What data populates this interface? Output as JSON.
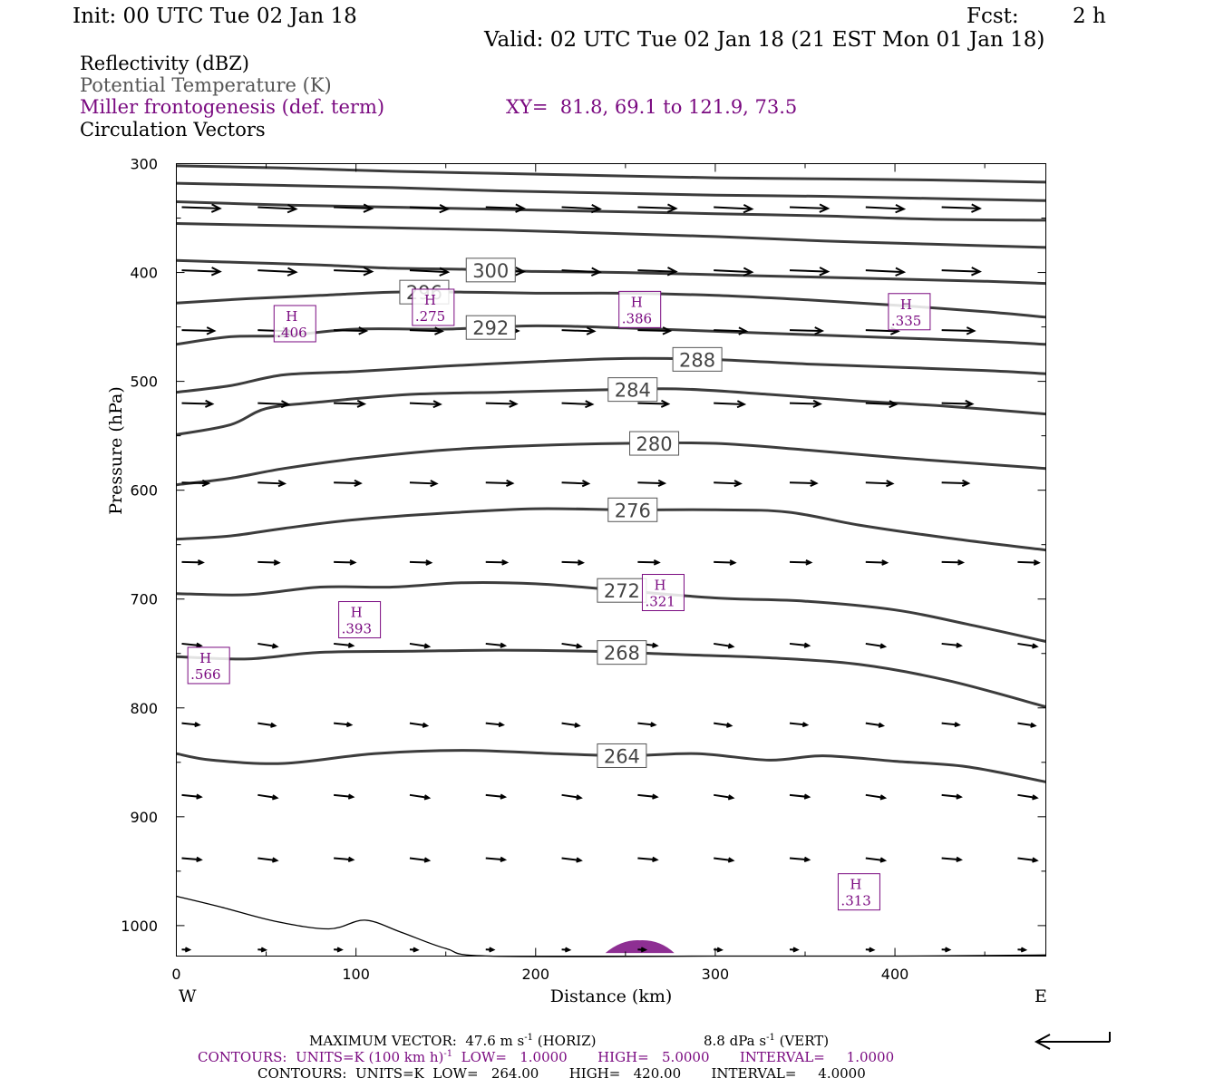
{
  "header": {
    "init": "Init: 00 UTC Tue 02 Jan 18",
    "fcst_label": "Fcst:",
    "fcst_value": "2 h",
    "valid": "Valid: 02 UTC Tue 02 Jan 18 (21 EST Mon 01 Jan 18)"
  },
  "legend": {
    "field1": "Reflectivity (dBZ)",
    "field2": "Potential Temperature (K)",
    "field3": "Miller frontogenesis (def. term)",
    "xy": "XY=  81.8, 69.1 to 121.9, 73.5",
    "field4": "Circulation Vectors"
  },
  "footer": {
    "max_vector_prefix": "MAXIMUM VECTOR:  47.6 m s",
    "max_vector_exp": "-1",
    "max_vector_horiz": " (HORIZ)",
    "max_vector_vert_prefix": "8.8 dPa s",
    "max_vector_vert_exp": "-1",
    "max_vector_vert": " (VERT)",
    "contours_purple_a": "CONTOURS:  UNITS=K (100 km h)",
    "contours_purple_exp": "-1",
    "contours_purple_b": "  LOW=   1.0000       HIGH=   5.0000       INTERVAL=     1.0000",
    "contours_black": "CONTOURS:  UNITS=K  LOW=   264.00       HIGH=   420.00       INTERVAL=     4.0000"
  },
  "colors": {
    "theta": "#3c3c3c",
    "frontogenesis": "#7a0a80",
    "vectors": "#000000",
    "reflectivity": "#7a0a80"
  },
  "chart_data": {
    "type": "line",
    "title": "",
    "xlabel": "Distance (km)",
    "ylabel": "Pressure (hPa)",
    "xlim": [
      0,
      484
    ],
    "ylim": [
      1028,
      300
    ],
    "x_ticks": [
      0,
      100,
      200,
      300,
      400
    ],
    "y_ticks": [
      300,
      400,
      500,
      600,
      700,
      800,
      900,
      1000
    ],
    "x_end_labels": {
      "left": "W",
      "right": "E"
    },
    "theta_contours": [
      {
        "value": 264,
        "label": "264",
        "label_x": 248,
        "points": [
          [
            0,
            842
          ],
          [
            20,
            848
          ],
          [
            60,
            851
          ],
          [
            110,
            842
          ],
          [
            160,
            839
          ],
          [
            210,
            842
          ],
          [
            250,
            844
          ],
          [
            290,
            842
          ],
          [
            330,
            848
          ],
          [
            360,
            844
          ],
          [
            400,
            849
          ],
          [
            440,
            854
          ],
          [
            484,
            868
          ]
        ]
      },
      {
        "value": 268,
        "label": "268",
        "label_x": 248,
        "points": [
          [
            0,
            753
          ],
          [
            40,
            755
          ],
          [
            80,
            749
          ],
          [
            130,
            748
          ],
          [
            180,
            747
          ],
          [
            230,
            748
          ],
          [
            280,
            751
          ],
          [
            330,
            754
          ],
          [
            380,
            760
          ],
          [
            430,
            775
          ],
          [
            484,
            799
          ]
        ]
      },
      {
        "value": 272,
        "label": "272",
        "label_x": 248,
        "points": [
          [
            0,
            695
          ],
          [
            40,
            696
          ],
          [
            80,
            689
          ],
          [
            120,
            689
          ],
          [
            160,
            685
          ],
          [
            200,
            686
          ],
          [
            240,
            691
          ],
          [
            300,
            699
          ],
          [
            350,
            702
          ],
          [
            400,
            710
          ],
          [
            440,
            723
          ],
          [
            484,
            739
          ]
        ]
      },
      {
        "value": 276,
        "label": "276",
        "label_x": 254,
        "points": [
          [
            0,
            645
          ],
          [
            30,
            642
          ],
          [
            60,
            635
          ],
          [
            100,
            627
          ],
          [
            150,
            621
          ],
          [
            200,
            617
          ],
          [
            250,
            618
          ],
          [
            300,
            618
          ],
          [
            340,
            620
          ],
          [
            380,
            632
          ],
          [
            430,
            644
          ],
          [
            484,
            655
          ]
        ]
      },
      {
        "value": 280,
        "label": "280",
        "label_x": 266,
        "points": [
          [
            0,
            595
          ],
          [
            30,
            589
          ],
          [
            60,
            580
          ],
          [
            100,
            571
          ],
          [
            150,
            563
          ],
          [
            200,
            559
          ],
          [
            250,
            557
          ],
          [
            300,
            557
          ],
          [
            350,
            563
          ],
          [
            400,
            570
          ],
          [
            450,
            576
          ],
          [
            484,
            580
          ]
        ]
      },
      {
        "value": 284,
        "label": "284",
        "label_x": 254,
        "points": [
          [
            0,
            549
          ],
          [
            30,
            540
          ],
          [
            50,
            525
          ],
          [
            80,
            519
          ],
          [
            130,
            512
          ],
          [
            180,
            510
          ],
          [
            230,
            508
          ],
          [
            280,
            507
          ],
          [
            330,
            512
          ],
          [
            380,
            518
          ],
          [
            430,
            523
          ],
          [
            484,
            530
          ]
        ]
      },
      {
        "value": 288,
        "label": "288",
        "label_x": 290,
        "points": [
          [
            0,
            510
          ],
          [
            30,
            504
          ],
          [
            60,
            494
          ],
          [
            100,
            491
          ],
          [
            150,
            486
          ],
          [
            200,
            482
          ],
          [
            250,
            479
          ],
          [
            300,
            480
          ],
          [
            350,
            484
          ],
          [
            400,
            487
          ],
          [
            450,
            490
          ],
          [
            484,
            493
          ]
        ]
      },
      {
        "value": 292,
        "label": "292",
        "label_x": 175,
        "points": [
          [
            0,
            466
          ],
          [
            30,
            459
          ],
          [
            60,
            458
          ],
          [
            100,
            452
          ],
          [
            150,
            452
          ],
          [
            200,
            449
          ],
          [
            250,
            451
          ],
          [
            300,
            454
          ],
          [
            350,
            457
          ],
          [
            400,
            460
          ],
          [
            450,
            463
          ],
          [
            484,
            466
          ]
        ]
      },
      {
        "value": 296,
        "label": "296",
        "label_x": 138,
        "points": [
          [
            0,
            428
          ],
          [
            40,
            424
          ],
          [
            80,
            421
          ],
          [
            120,
            418
          ],
          [
            160,
            418
          ],
          [
            200,
            419
          ],
          [
            250,
            419
          ],
          [
            300,
            421
          ],
          [
            350,
            425
          ],
          [
            400,
            430
          ],
          [
            450,
            436
          ],
          [
            484,
            441
          ]
        ]
      },
      {
        "value": 300,
        "label": "300",
        "label_x": 175,
        "points": [
          [
            0,
            389
          ],
          [
            40,
            391
          ],
          [
            80,
            393
          ],
          [
            120,
            396
          ],
          [
            160,
            397
          ],
          [
            200,
            399
          ],
          [
            250,
            400
          ],
          [
            300,
            402
          ],
          [
            350,
            404
          ],
          [
            400,
            406
          ],
          [
            450,
            408
          ],
          [
            484,
            410
          ]
        ]
      },
      {
        "value": 304,
        "label": "",
        "label_x": null,
        "points": [
          [
            0,
            355
          ],
          [
            60,
            357
          ],
          [
            120,
            359
          ],
          [
            180,
            361
          ],
          [
            240,
            364
          ],
          [
            300,
            367
          ],
          [
            360,
            371
          ],
          [
            420,
            374
          ],
          [
            484,
            377
          ]
        ]
      },
      {
        "value": 308,
        "label": "",
        "label_x": null,
        "points": [
          [
            0,
            335
          ],
          [
            60,
            338
          ],
          [
            120,
            340
          ],
          [
            180,
            342
          ],
          [
            240,
            344
          ],
          [
            300,
            346
          ],
          [
            360,
            348
          ],
          [
            420,
            351
          ],
          [
            484,
            352
          ]
        ]
      },
      {
        "value": 312,
        "label": "",
        "label_x": null,
        "points": [
          [
            0,
            318
          ],
          [
            60,
            320
          ],
          [
            120,
            322
          ],
          [
            180,
            325
          ],
          [
            240,
            327
          ],
          [
            300,
            329
          ],
          [
            360,
            330
          ],
          [
            420,
            332
          ],
          [
            484,
            334
          ]
        ]
      },
      {
        "value": 316,
        "label": "",
        "label_x": null,
        "points": [
          [
            0,
            302
          ],
          [
            60,
            304
          ],
          [
            120,
            307
          ],
          [
            180,
            309
          ],
          [
            240,
            311
          ],
          [
            300,
            313
          ],
          [
            360,
            314
          ],
          [
            420,
            315
          ],
          [
            484,
            317
          ]
        ]
      }
    ],
    "terrain": [
      [
        0,
        973
      ],
      [
        25,
        983
      ],
      [
        55,
        996
      ],
      [
        85,
        1003
      ],
      [
        105,
        995
      ],
      [
        125,
        1006
      ],
      [
        150,
        1021
      ],
      [
        175,
        1028
      ],
      [
        300,
        1028
      ],
      [
        400,
        1028
      ],
      [
        484,
        1027
      ]
    ],
    "frontogenesis_maxima": [
      {
        "label": "H",
        "value": ".406",
        "x": 66,
        "p": 447
      },
      {
        "label": "H",
        "value": ".275",
        "x": 143,
        "p": 432
      },
      {
        "label": "H",
        "value": ".386",
        "x": 258,
        "p": 434
      },
      {
        "label": "H",
        "value": ".335",
        "x": 408,
        "p": 436
      },
      {
        "label": "H",
        "value": ".321",
        "x": 271,
        "p": 694
      },
      {
        "label": "H",
        "value": ".393",
        "x": 102,
        "p": 719
      },
      {
        "label": "H",
        "value": ".566",
        "x": 18,
        "p": 761
      },
      {
        "label": "H",
        "value": ".313",
        "x": 380,
        "p": 969
      }
    ],
    "vector_rows": [
      {
        "p": 340,
        "u": 20,
        "w": 0.6,
        "x_start": 0
      },
      {
        "p": 398,
        "u": 20,
        "w": 0.6,
        "x_start": 0
      },
      {
        "p": 453,
        "u": 17,
        "w": 0.4,
        "x_start": 0
      },
      {
        "p": 520,
        "u": 16,
        "w": 0.5,
        "x_start": 0
      },
      {
        "p": 593,
        "u": 14,
        "w": 0.5,
        "x_start": 0
      },
      {
        "p": 666,
        "u": 11,
        "w": 0.4,
        "x_start": 0
      },
      {
        "p": 741,
        "u": 10,
        "w": 0.6,
        "x_start": 0
      },
      {
        "p": 814,
        "u": 9,
        "w": 0.6,
        "x_start": 0
      },
      {
        "p": 880,
        "u": 10,
        "w": 0.6,
        "x_start": 0
      },
      {
        "p": 938,
        "u": 10,
        "w": 0.5,
        "x_start": 0
      },
      {
        "p": 1022,
        "u": 4,
        "w": 0.2,
        "x_start": 0
      }
    ],
    "reflectivity_blob": {
      "x": 258,
      "p": 1021
    },
    "legend_arrow_scale": "47.6 m s-1"
  }
}
